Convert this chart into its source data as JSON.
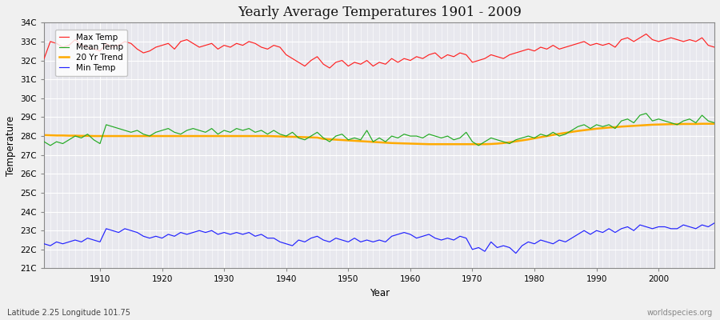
{
  "title": "Yearly Average Temperatures 1901 - 2009",
  "xlabel": "Year",
  "ylabel": "Temperature",
  "subtitle": "Latitude 2.25 Longitude 101.75",
  "watermark": "worldspecies.org",
  "years": [
    1901,
    1902,
    1903,
    1904,
    1905,
    1906,
    1907,
    1908,
    1909,
    1910,
    1911,
    1912,
    1913,
    1914,
    1915,
    1916,
    1917,
    1918,
    1919,
    1920,
    1921,
    1922,
    1923,
    1924,
    1925,
    1926,
    1927,
    1928,
    1929,
    1930,
    1931,
    1932,
    1933,
    1934,
    1935,
    1936,
    1937,
    1938,
    1939,
    1940,
    1941,
    1942,
    1943,
    1944,
    1945,
    1946,
    1947,
    1948,
    1949,
    1950,
    1951,
    1952,
    1953,
    1954,
    1955,
    1956,
    1957,
    1958,
    1959,
    1960,
    1961,
    1962,
    1963,
    1964,
    1965,
    1966,
    1967,
    1968,
    1969,
    1970,
    1971,
    1972,
    1973,
    1974,
    1975,
    1976,
    1977,
    1978,
    1979,
    1980,
    1981,
    1982,
    1983,
    1984,
    1985,
    1986,
    1987,
    1988,
    1989,
    1990,
    1991,
    1992,
    1993,
    1994,
    1995,
    1996,
    1997,
    1998,
    1999,
    2000,
    2001,
    2002,
    2003,
    2004,
    2005,
    2006,
    2007,
    2008,
    2009
  ],
  "max_temp": [
    32.1,
    33.0,
    32.9,
    32.7,
    32.8,
    33.1,
    32.8,
    32.7,
    32.6,
    32.5,
    32.9,
    32.7,
    32.8,
    33.0,
    32.9,
    32.6,
    32.4,
    32.5,
    32.7,
    32.8,
    32.9,
    32.6,
    33.0,
    33.1,
    32.9,
    32.7,
    32.8,
    32.9,
    32.6,
    32.8,
    32.7,
    32.9,
    32.8,
    33.0,
    32.9,
    32.7,
    32.6,
    32.8,
    32.7,
    32.3,
    32.1,
    31.9,
    31.7,
    32.0,
    32.2,
    31.8,
    31.6,
    31.9,
    32.0,
    31.7,
    31.9,
    31.8,
    32.0,
    31.7,
    31.9,
    31.8,
    32.1,
    31.9,
    32.1,
    32.0,
    32.2,
    32.1,
    32.3,
    32.4,
    32.1,
    32.3,
    32.2,
    32.4,
    32.3,
    31.9,
    32.0,
    32.1,
    32.3,
    32.2,
    32.1,
    32.3,
    32.4,
    32.5,
    32.6,
    32.5,
    32.7,
    32.6,
    32.8,
    32.6,
    32.7,
    32.8,
    32.9,
    33.0,
    32.8,
    32.9,
    32.8,
    32.9,
    32.7,
    33.1,
    33.2,
    33.0,
    33.2,
    33.4,
    33.1,
    33.0,
    33.1,
    33.2,
    33.1,
    33.0,
    33.1,
    33.0,
    33.2,
    32.8,
    32.7
  ],
  "mean_temp": [
    27.7,
    27.5,
    27.7,
    27.6,
    27.8,
    28.0,
    27.9,
    28.1,
    27.8,
    27.6,
    28.6,
    28.5,
    28.4,
    28.3,
    28.2,
    28.3,
    28.1,
    28.0,
    28.2,
    28.3,
    28.4,
    28.2,
    28.1,
    28.3,
    28.4,
    28.3,
    28.2,
    28.4,
    28.1,
    28.3,
    28.2,
    28.4,
    28.3,
    28.4,
    28.2,
    28.3,
    28.1,
    28.3,
    28.1,
    28.0,
    28.2,
    27.9,
    27.8,
    28.0,
    28.2,
    27.9,
    27.7,
    28.0,
    28.1,
    27.8,
    27.9,
    27.8,
    28.3,
    27.7,
    27.9,
    27.7,
    28.0,
    27.9,
    28.1,
    28.0,
    28.0,
    27.9,
    28.1,
    28.0,
    27.9,
    28.0,
    27.8,
    27.9,
    28.2,
    27.7,
    27.5,
    27.7,
    27.9,
    27.8,
    27.7,
    27.6,
    27.8,
    27.9,
    28.0,
    27.9,
    28.1,
    28.0,
    28.2,
    28.0,
    28.1,
    28.3,
    28.5,
    28.6,
    28.4,
    28.6,
    28.5,
    28.6,
    28.4,
    28.8,
    28.9,
    28.7,
    29.1,
    29.2,
    28.8,
    28.9,
    28.8,
    28.7,
    28.6,
    28.8,
    28.9,
    28.7,
    29.1,
    28.8,
    28.7
  ],
  "min_temp": [
    22.3,
    22.2,
    22.4,
    22.3,
    22.4,
    22.5,
    22.4,
    22.6,
    22.5,
    22.4,
    23.1,
    23.0,
    22.9,
    23.1,
    23.0,
    22.9,
    22.7,
    22.6,
    22.7,
    22.6,
    22.8,
    22.7,
    22.9,
    22.8,
    22.9,
    23.0,
    22.9,
    23.0,
    22.8,
    22.9,
    22.8,
    22.9,
    22.8,
    22.9,
    22.7,
    22.8,
    22.6,
    22.6,
    22.4,
    22.3,
    22.2,
    22.5,
    22.4,
    22.6,
    22.7,
    22.5,
    22.4,
    22.6,
    22.5,
    22.4,
    22.6,
    22.4,
    22.5,
    22.4,
    22.5,
    22.4,
    22.7,
    22.8,
    22.9,
    22.8,
    22.6,
    22.7,
    22.8,
    22.6,
    22.5,
    22.6,
    22.5,
    22.7,
    22.6,
    22.0,
    22.1,
    21.9,
    22.4,
    22.1,
    22.2,
    22.1,
    21.8,
    22.2,
    22.4,
    22.3,
    22.5,
    22.4,
    22.3,
    22.5,
    22.4,
    22.6,
    22.8,
    23.0,
    22.8,
    23.0,
    22.9,
    23.1,
    22.9,
    23.1,
    23.2,
    23.0,
    23.3,
    23.2,
    23.1,
    23.2,
    23.2,
    23.1,
    23.1,
    23.3,
    23.2,
    23.1,
    23.3,
    23.2,
    23.4
  ],
  "trend": [
    28.05,
    28.04,
    28.03,
    28.03,
    28.02,
    28.02,
    28.01,
    28.01,
    28.0,
    28.0,
    28.0,
    28.0,
    28.0,
    28.0,
    28.0,
    28.0,
    28.0,
    28.0,
    28.0,
    28.0,
    28.0,
    28.0,
    28.0,
    28.0,
    28.0,
    28.0,
    28.0,
    28.0,
    28.0,
    28.0,
    28.0,
    28.0,
    28.0,
    28.0,
    28.0,
    28.0,
    28.0,
    27.99,
    27.98,
    27.97,
    27.96,
    27.95,
    27.94,
    27.93,
    27.92,
    27.85,
    27.83,
    27.81,
    27.79,
    27.77,
    27.75,
    27.73,
    27.71,
    27.69,
    27.67,
    27.65,
    27.63,
    27.62,
    27.61,
    27.6,
    27.59,
    27.58,
    27.57,
    27.57,
    27.57,
    27.57,
    27.57,
    27.57,
    27.57,
    27.57,
    27.57,
    27.57,
    27.58,
    27.6,
    27.63,
    27.67,
    27.72,
    27.77,
    27.82,
    27.88,
    27.94,
    28.0,
    28.06,
    28.12,
    28.17,
    28.22,
    28.27,
    28.31,
    28.35,
    28.39,
    28.42,
    28.45,
    28.47,
    28.5,
    28.52,
    28.54,
    28.56,
    28.58,
    28.6,
    28.61,
    28.62,
    28.63,
    28.63,
    28.64,
    28.64,
    28.64,
    28.65,
    28.65,
    28.65
  ],
  "max_color": "#ff2222",
  "mean_color": "#22aa22",
  "min_color": "#2222ff",
  "trend_color": "#ffaa00",
  "bg_color": "#f0f0f0",
  "plot_bg_color": "#e8e8ee",
  "grid_color": "#ffffff",
  "ylim": [
    21,
    34
  ],
  "yticks": [
    21,
    22,
    23,
    24,
    25,
    26,
    27,
    28,
    29,
    30,
    31,
    32,
    33,
    34
  ],
  "ytick_labels": [
    "21C",
    "22C",
    "23C",
    "24C",
    "25C",
    "26C",
    "27C",
    "28C",
    "29C",
    "30C",
    "31C",
    "32C",
    "33C",
    "34C"
  ],
  "xlim": [
    1901,
    2009
  ],
  "xticks": [
    1910,
    1920,
    1930,
    1940,
    1950,
    1960,
    1970,
    1980,
    1990,
    2000
  ]
}
